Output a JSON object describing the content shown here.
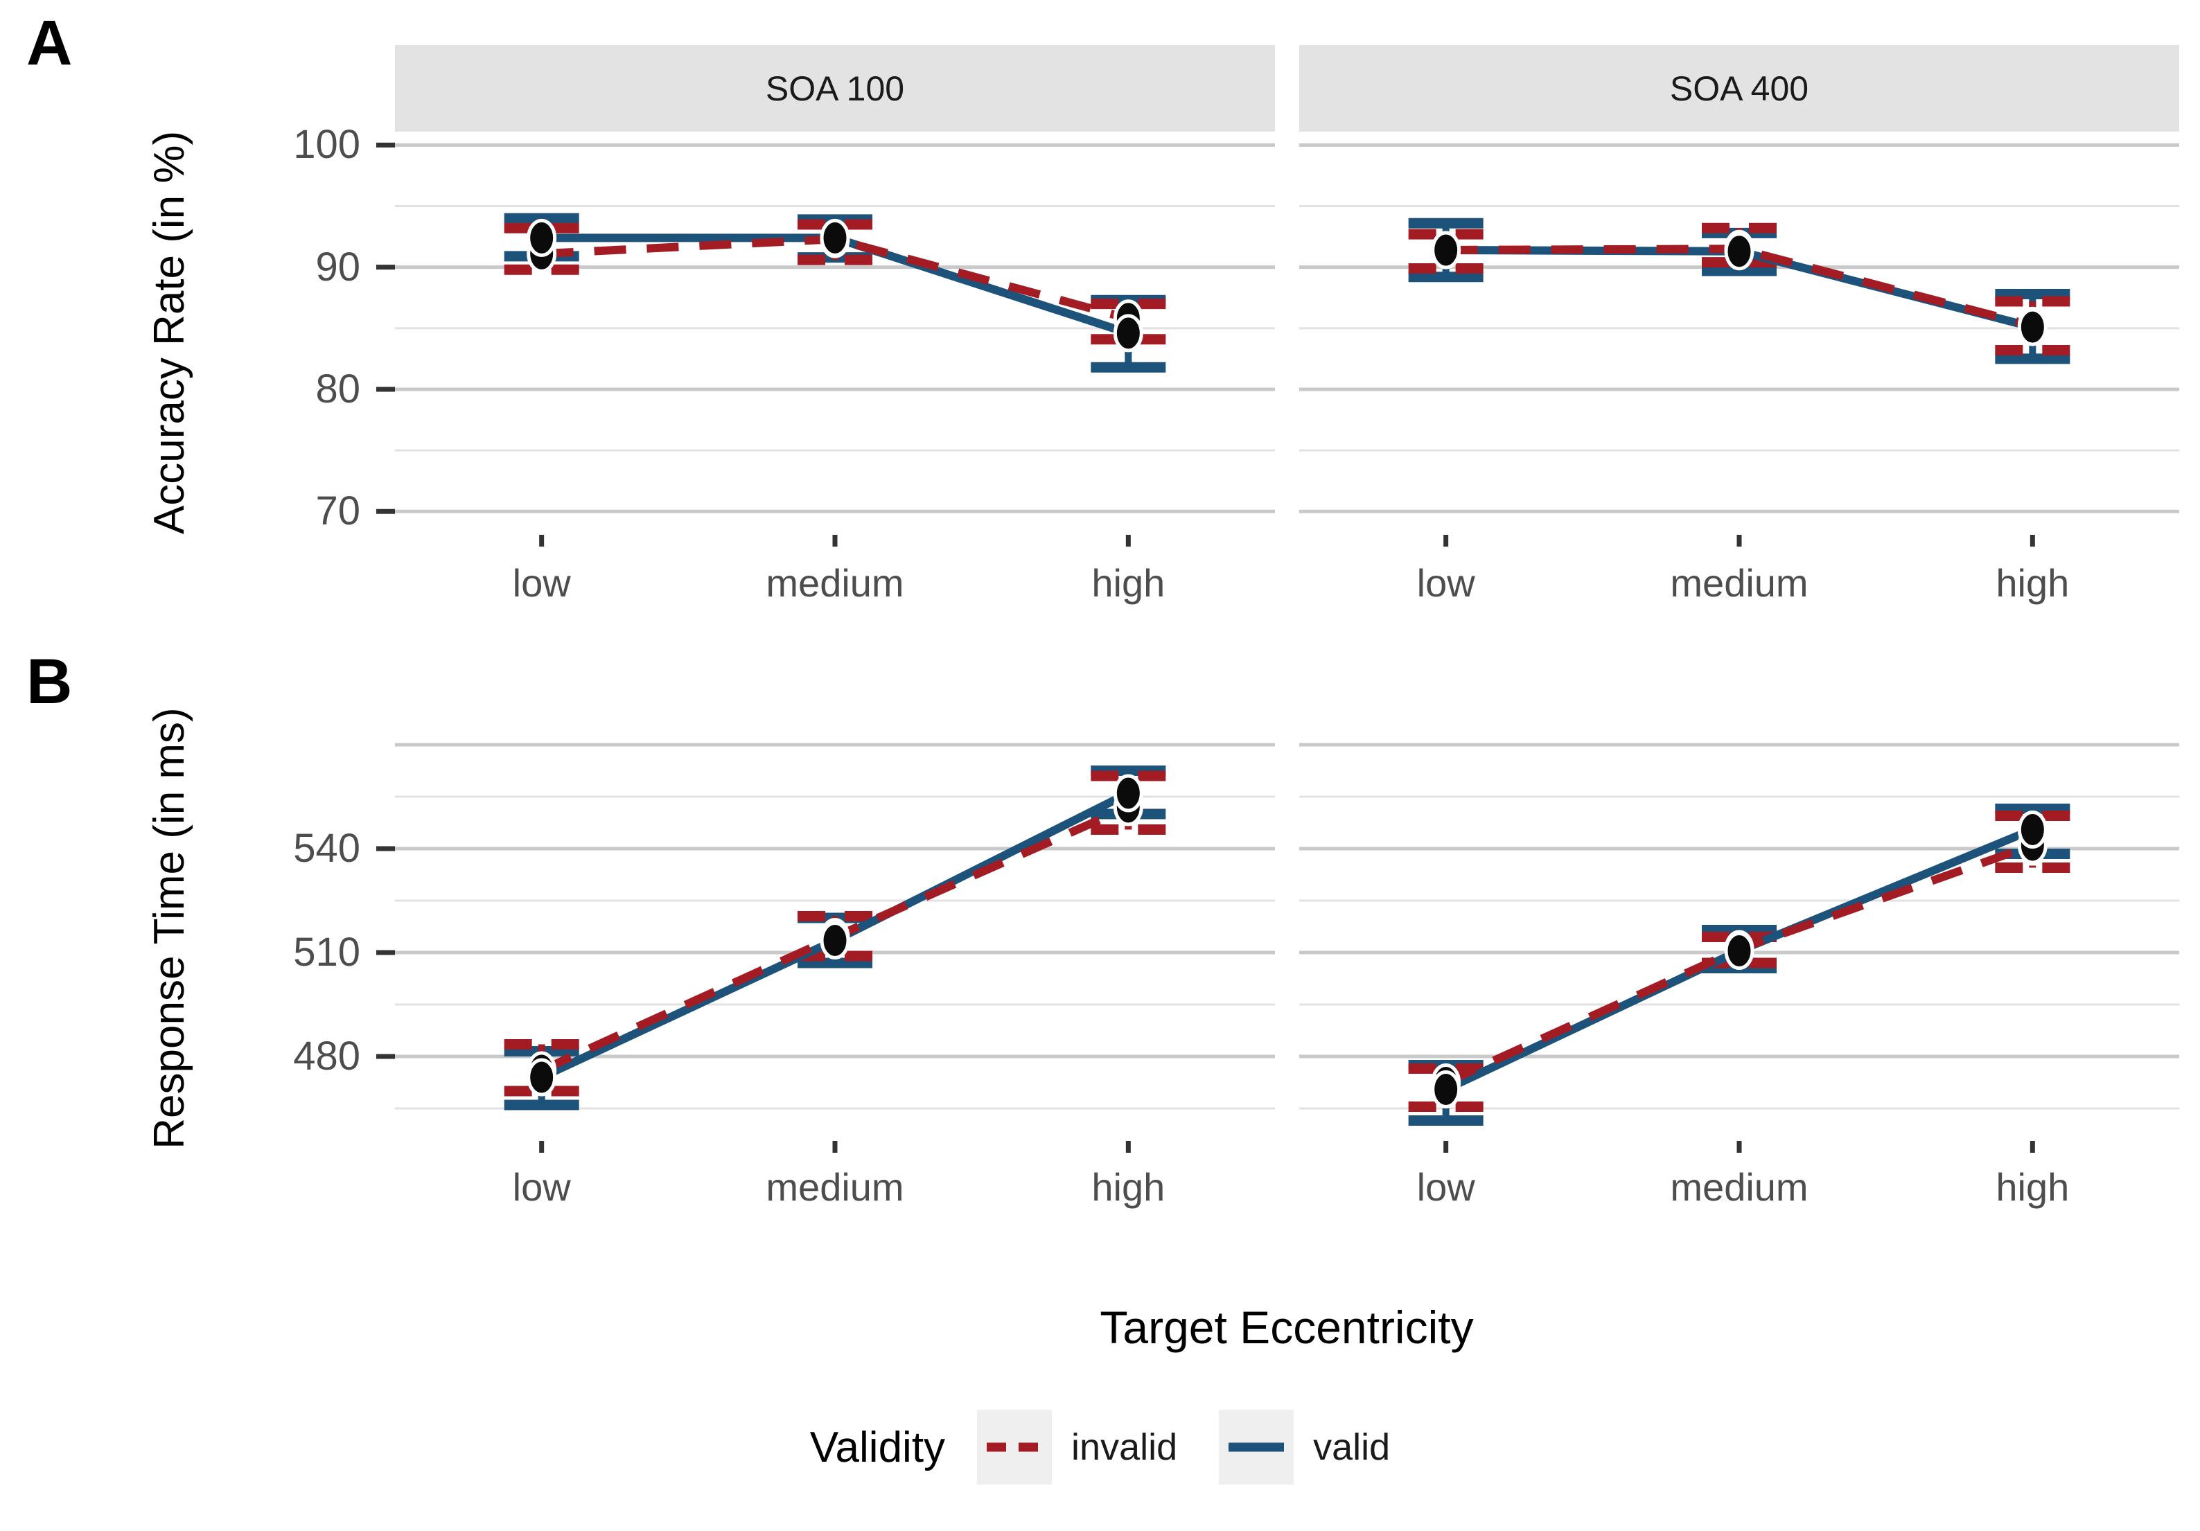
{
  "panel_labels": {
    "a": "A",
    "b": "B"
  },
  "axis": {
    "x_title": "Target Eccentricity",
    "y_title_a": "Accuracy Rate (in %)",
    "y_title_b": "Response Time (in ms)"
  },
  "legend": {
    "title": "Validity",
    "items": [
      {
        "label": "invalid",
        "style": "dashed",
        "color": "#a31c24"
      },
      {
        "label": "valid",
        "style": "solid",
        "color": "#1d527a"
      }
    ]
  },
  "colors": {
    "invalid": "#a31c24",
    "valid": "#1d527a",
    "point": "#0b0b0b",
    "point_ring": "#ffffff",
    "grid_major": "#c9c9c9",
    "grid_minor": "#e2e2e2",
    "strip_bg": "#e3e3e3",
    "key_bg": "#efefef",
    "tick": "#333333",
    "axis_text": "#4d4d4d"
  },
  "chart_data": [
    {
      "type": "line",
      "panel": "A",
      "ylabel": "Accuracy Rate (in %)",
      "xlabel": "Target Eccentricity",
      "categories": [
        "low",
        "medium",
        "high"
      ],
      "yticks_labeled": [
        100,
        90,
        80,
        70
      ],
      "yticks_minor": [
        95,
        85,
        75
      ],
      "ylim": [
        68.2,
        101.1
      ],
      "grid": true,
      "legend_position": "bottom",
      "facets": [
        {
          "label": "SOA 100",
          "series": [
            {
              "name": "invalid",
              "values": [
                91.1,
                92.3,
                85.8
              ],
              "ci_low": [
                89.8,
                90.6,
                84.1
              ],
              "ci_high": [
                93.2,
                93.5,
                87.0
              ]
            },
            {
              "name": "valid",
              "values": [
                92.4,
                92.4,
                84.6
              ],
              "ci_low": [
                90.9,
                90.8,
                81.8
              ],
              "ci_high": [
                94.0,
                93.9,
                87.3
              ]
            }
          ]
        },
        {
          "label": "SOA 400",
          "series": [
            {
              "name": "invalid",
              "values": [
                91.4,
                91.5,
                85.2
              ],
              "ci_low": [
                89.9,
                90.4,
                83.2
              ],
              "ci_high": [
                92.7,
                93.2,
                87.2
              ]
            },
            {
              "name": "valid",
              "values": [
                91.4,
                91.3,
                85.1
              ],
              "ci_low": [
                89.2,
                89.7,
                82.5
              ],
              "ci_high": [
                93.6,
                92.8,
                87.8
              ]
            }
          ]
        }
      ]
    },
    {
      "type": "line",
      "panel": "B",
      "ylabel": "Response Time (in ms)",
      "xlabel": "Target Eccentricity",
      "categories": [
        "low",
        "medium",
        "high"
      ],
      "yticks_labeled": [
        540,
        510,
        480
      ],
      "yticks_major_unlabeled": [
        570
      ],
      "yticks_minor": [
        555,
        525,
        495,
        465
      ],
      "ylim": [
        457,
        577
      ],
      "grid": true,
      "legend_position": "bottom",
      "facets": [
        {
          "label": "SOA 100",
          "series": [
            {
              "name": "invalid",
              "values": [
                476.0,
                514.5,
                552.0
              ],
              "ci_low": [
                470.0,
                509.0,
                545.5
              ],
              "ci_high": [
                483.5,
                520.5,
                561.0
              ]
            },
            {
              "name": "valid",
              "values": [
                474.0,
                513.5,
                556.0
              ],
              "ci_low": [
                466.0,
                507.0,
                550.0
              ],
              "ci_high": [
                481.5,
                520.0,
                562.5
              ]
            }
          ]
        },
        {
          "label": "SOA 400",
          "series": [
            {
              "name": "invalid",
              "values": [
                472.5,
                511.0,
                541.0
              ],
              "ci_low": [
                465.5,
                507.0,
                534.5
              ],
              "ci_high": [
                476.5,
                514.5,
                549.5
              ]
            },
            {
              "name": "valid",
              "values": [
                470.5,
                510.5,
                545.5
              ],
              "ci_low": [
                461.5,
                505.5,
                538.5
              ],
              "ci_high": [
                477.5,
                516.5,
                551.5
              ]
            }
          ]
        }
      ]
    }
  ]
}
